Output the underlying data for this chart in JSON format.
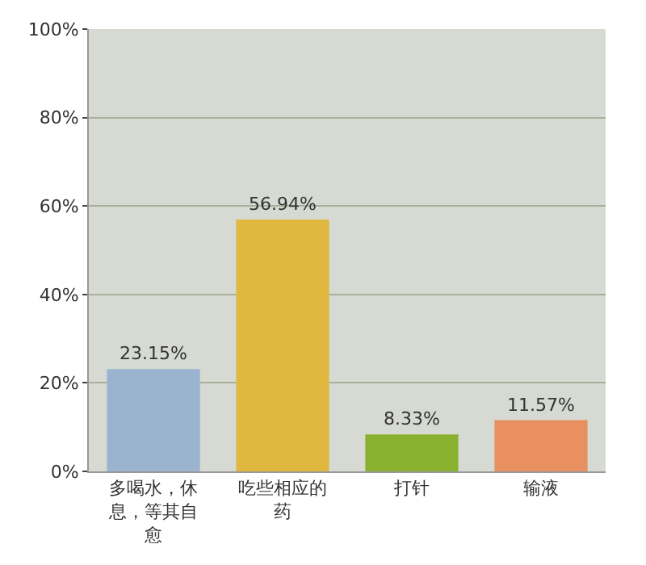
{
  "chart_data": {
    "type": "bar",
    "categories": [
      "多喝水，休息，等其自愈",
      "吃些相应的药",
      "打针",
      "输液"
    ],
    "values": [
      23.15,
      56.94,
      8.33,
      11.57
    ],
    "colors": [
      "#9ab4d0",
      "#e0b840",
      "#8ab030",
      "#e89060"
    ],
    "value_labels": [
      "23.15%",
      "56.94%",
      "8.33%",
      "11.57%"
    ],
    "ylim": [
      0,
      100
    ],
    "yticks": [
      {
        "value": 0,
        "label": "0%"
      },
      {
        "value": 20,
        "label": "20%"
      },
      {
        "value": 40,
        "label": "40%"
      },
      {
        "value": 60,
        "label": "60%"
      },
      {
        "value": 80,
        "label": "80%"
      },
      {
        "value": 100,
        "label": "100%"
      }
    ],
    "grid": "y"
  }
}
